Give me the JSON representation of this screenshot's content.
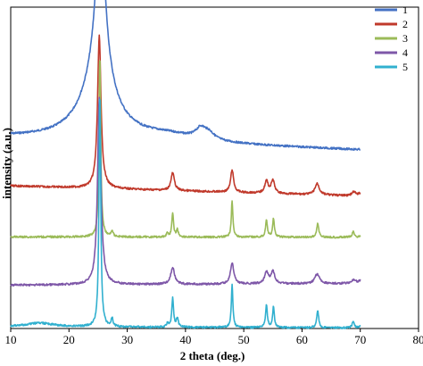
{
  "chart_data": {
    "type": "line",
    "xlabel": "2 theta (deg.)",
    "ylabel": "intensity (a.u.)",
    "xlim": [
      10,
      80
    ],
    "xticks": [
      10,
      20,
      30,
      40,
      50,
      60,
      70,
      80
    ],
    "xtick_labels": [
      "10",
      "20",
      "30",
      "40",
      "50",
      "60",
      "70",
      "80"
    ],
    "ylim": [
      0,
      1
    ],
    "grid": false,
    "legend_position": "top-right",
    "x_range_data": [
      10,
      70
    ],
    "series": [
      {
        "name": "1",
        "color": "#4472c4",
        "baseline_start": 0.405,
        "baseline_end": 0.445,
        "broad": [
          {
            "x": 25.4,
            "h": 0.5,
            "w": 1.0
          },
          {
            "x": 25.0,
            "h": 0.18,
            "w": 3.5
          },
          {
            "x": 42.6,
            "h": 0.03,
            "w": 1.0
          },
          {
            "x": 44.0,
            "h": 0.022,
            "w": 1.2
          },
          {
            "x": 37.0,
            "h": 0.02,
            "w": 6.0
          }
        ],
        "sharp": []
      },
      {
        "name": "2",
        "color": "#c0392b",
        "baseline_start": 0.556,
        "baseline_end": 0.588,
        "broad": [
          {
            "x": 25.2,
            "h": 0.475,
            "w": 0.35
          },
          {
            "x": 37.8,
            "h": 0.055,
            "w": 0.35
          },
          {
            "x": 48.0,
            "h": 0.07,
            "w": 0.3
          },
          {
            "x": 53.9,
            "h": 0.038,
            "w": 0.35
          },
          {
            "x": 55.0,
            "h": 0.04,
            "w": 0.35
          },
          {
            "x": 62.6,
            "h": 0.035,
            "w": 0.45
          },
          {
            "x": 68.9,
            "h": 0.012,
            "w": 0.4
          },
          {
            "x": 70.1,
            "h": 0.01,
            "w": 0.4
          }
        ],
        "sharp": []
      },
      {
        "name": "3",
        "color": "#9bbb59",
        "baseline_start": 0.715,
        "baseline_end": 0.716,
        "broad": [
          {
            "x": 25.3,
            "h": 0.565,
            "w": 0.18
          },
          {
            "x": 27.4,
            "h": 0.018,
            "w": 0.2
          },
          {
            "x": 36.9,
            "h": 0.012,
            "w": 0.2
          },
          {
            "x": 37.8,
            "h": 0.072,
            "w": 0.18
          },
          {
            "x": 38.6,
            "h": 0.022,
            "w": 0.2
          },
          {
            "x": 48.0,
            "h": 0.115,
            "w": 0.16
          },
          {
            "x": 53.9,
            "h": 0.055,
            "w": 0.18
          },
          {
            "x": 55.1,
            "h": 0.058,
            "w": 0.18
          },
          {
            "x": 62.7,
            "h": 0.045,
            "w": 0.2
          },
          {
            "x": 68.8,
            "h": 0.018,
            "w": 0.2
          },
          {
            "x": 70.3,
            "h": 0.012,
            "w": 0.2
          }
        ],
        "sharp": []
      },
      {
        "name": "4",
        "color": "#7e57a8",
        "baseline_start": 0.865,
        "baseline_end": 0.86,
        "broad": [
          {
            "x": 25.2,
            "h": 0.58,
            "w": 0.35
          },
          {
            "x": 37.8,
            "h": 0.052,
            "w": 0.4
          },
          {
            "x": 48.0,
            "h": 0.065,
            "w": 0.35
          },
          {
            "x": 53.9,
            "h": 0.035,
            "w": 0.4
          },
          {
            "x": 55.0,
            "h": 0.037,
            "w": 0.4
          },
          {
            "x": 62.6,
            "h": 0.03,
            "w": 0.5
          },
          {
            "x": 68.9,
            "h": 0.012,
            "w": 0.4
          },
          {
            "x": 70.1,
            "h": 0.01,
            "w": 0.4
          }
        ],
        "sharp": []
      },
      {
        "name": "5",
        "color": "#31b0cf",
        "baseline_start": 0.995,
        "baseline_end": 0.998,
        "broad": [
          {
            "x": 25.3,
            "h": 0.73,
            "w": 0.18
          },
          {
            "x": 15.0,
            "h": 0.012,
            "w": 3.0
          },
          {
            "x": 27.4,
            "h": 0.025,
            "w": 0.2
          },
          {
            "x": 36.9,
            "h": 0.012,
            "w": 0.2
          },
          {
            "x": 37.8,
            "h": 0.09,
            "w": 0.18
          },
          {
            "x": 38.6,
            "h": 0.028,
            "w": 0.2
          },
          {
            "x": 48.0,
            "h": 0.135,
            "w": 0.16
          },
          {
            "x": 53.9,
            "h": 0.07,
            "w": 0.18
          },
          {
            "x": 55.1,
            "h": 0.065,
            "w": 0.18
          },
          {
            "x": 62.7,
            "h": 0.053,
            "w": 0.2
          },
          {
            "x": 68.8,
            "h": 0.022,
            "w": 0.2
          },
          {
            "x": 70.3,
            "h": 0.015,
            "w": 0.2
          }
        ],
        "sharp": []
      }
    ]
  }
}
